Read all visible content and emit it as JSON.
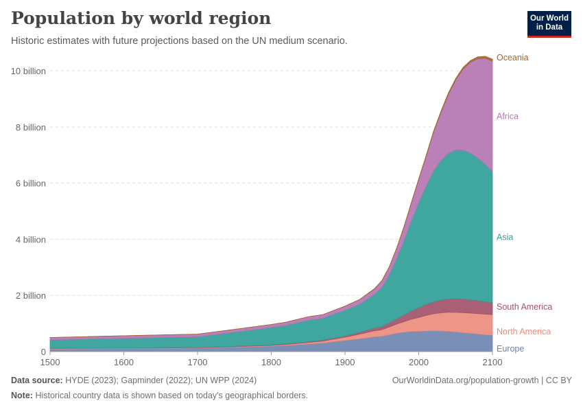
{
  "header": {
    "title": "Population by world region",
    "subtitle": "Historic estimates with future projections based on the UN medium scenario.",
    "logo_line1": "Our World",
    "logo_line2": "in Data"
  },
  "footer": {
    "source_label": "Data source:",
    "source_text": "HYDE (2023); Gapminder (2022); UN WPP (2024)",
    "note_label": "Note:",
    "note_text": "Historical country data is shown based on today's geographical borders.",
    "url": "OurWorldinData.org/population-growth | CC BY"
  },
  "colors": {
    "Europe": "#6f86b0",
    "North America": "#ec8c7c",
    "South America": "#a2536a",
    "Asia": "#2f9f98",
    "Africa": "#b476b3",
    "Oceania": "#a2662f"
  },
  "chart_data": {
    "type": "area",
    "stacked": true,
    "title": "Population by world region",
    "xlabel": "",
    "ylabel": "",
    "xlim": [
      1500,
      2100
    ],
    "ylim": [
      0,
      10500000000
    ],
    "x_ticks": [
      1500,
      1600,
      1700,
      1800,
      1900,
      2000,
      2100
    ],
    "y_ticks": [
      0,
      2000000000,
      4000000000,
      6000000000,
      8000000000,
      10000000000
    ],
    "y_tick_labels": [
      "0",
      "2 billion",
      "4 billion",
      "6 billion",
      "8 billion",
      "10 billion"
    ],
    "grid": "horizontal dashed",
    "x": [
      1500,
      1600,
      1700,
      1750,
      1800,
      1820,
      1850,
      1870,
      1900,
      1920,
      1940,
      1950,
      1960,
      1970,
      1980,
      1990,
      2000,
      2010,
      2020,
      2030,
      2040,
      2050,
      2060,
      2070,
      2080,
      2090,
      2100
    ],
    "series": [
      {
        "name": "Europe",
        "values": [
          90000000,
          110000000,
          125000000,
          160000000,
          195000000,
          225000000,
          275000000,
          310000000,
          400000000,
          460000000,
          530000000,
          549000000,
          605000000,
          657000000,
          694000000,
          721000000,
          726000000,
          737000000,
          745000000,
          738000000,
          725000000,
          705000000,
          680000000,
          655000000,
          630000000,
          605000000,
          586000000
        ]
      },
      {
        "name": "North America",
        "values": [
          20000000,
          15000000,
          12000000,
          16000000,
          25000000,
          30000000,
          45000000,
          65000000,
          110000000,
          160000000,
          210000000,
          230000000,
          270000000,
          320000000,
          370000000,
          430000000,
          490000000,
          550000000,
          600000000,
          640000000,
          670000000,
          690000000,
          705000000,
          715000000,
          722000000,
          727000000,
          730000000
        ]
      },
      {
        "name": "South America",
        "values": [
          10000000,
          8000000,
          10000000,
          14000000,
          18000000,
          21000000,
          28000000,
          35000000,
          45000000,
          70000000,
          100000000,
          114000000,
          148000000,
          190000000,
          242000000,
          297000000,
          349000000,
          396000000,
          431000000,
          460000000,
          480000000,
          490000000,
          490000000,
          480000000,
          465000000,
          445000000,
          426000000
        ]
      },
      {
        "name": "Asia",
        "values": [
          300000000,
          340000000,
          380000000,
          500000000,
          620000000,
          660000000,
          770000000,
          780000000,
          920000000,
          1000000000,
          1200000000,
          1396000000,
          1700000000,
          2140000000,
          2650000000,
          3210000000,
          3740000000,
          4210000000,
          4660000000,
          4960000000,
          5180000000,
          5290000000,
          5300000000,
          5220000000,
          5080000000,
          4900000000,
          4670000000
        ]
      },
      {
        "name": "Africa",
        "values": [
          80000000,
          90000000,
          95000000,
          100000000,
          105000000,
          110000000,
          120000000,
          125000000,
          140000000,
          160000000,
          190000000,
          228000000,
          283000000,
          363000000,
          476000000,
          630000000,
          818000000,
          1055000000,
          1360000000,
          1710000000,
          2090000000,
          2490000000,
          2880000000,
          3230000000,
          3530000000,
          3770000000,
          3930000000
        ]
      },
      {
        "name": "Oceania",
        "values": [
          2000000,
          2000000,
          2000000,
          2000000,
          2000000,
          2000000,
          2000000,
          3000000,
          6000000,
          9000000,
          11000000,
          13000000,
          16000000,
          19000000,
          23000000,
          27000000,
          31000000,
          37000000,
          43000000,
          48000000,
          53000000,
          57000000,
          60000000,
          63000000,
          66000000,
          68000000,
          69000000
        ]
      }
    ],
    "legend_placement": "right, inline labels at end of each area"
  }
}
